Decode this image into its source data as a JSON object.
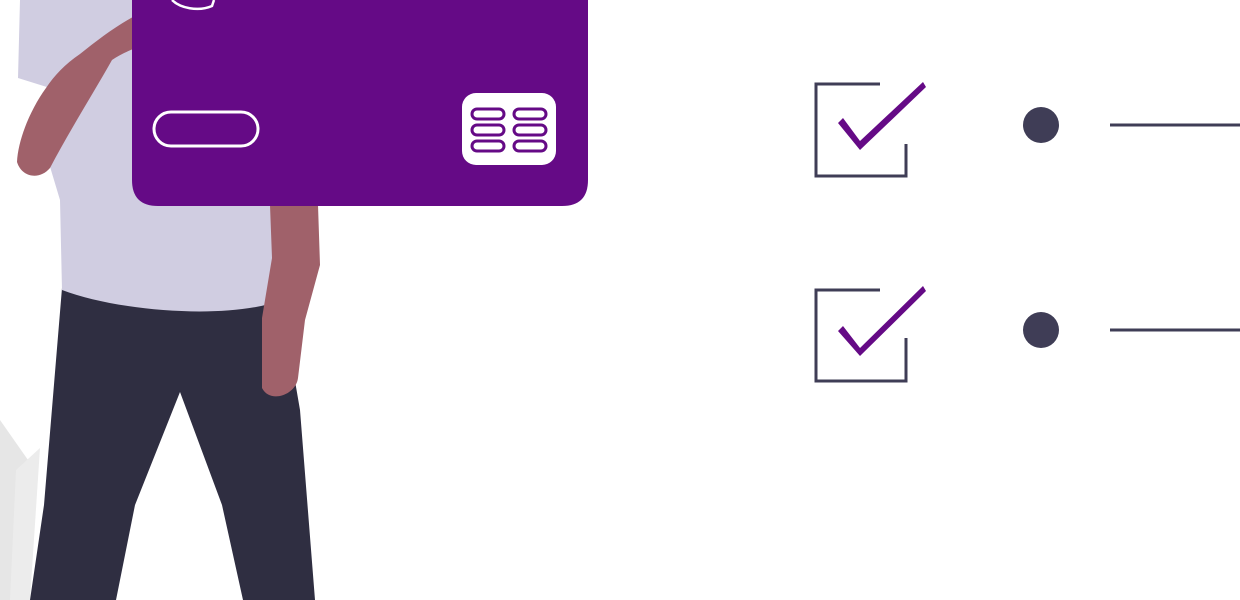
{
  "illustration": {
    "colors": {
      "card": "#650a86",
      "card_chip": "#ffffff",
      "skin": "#a0616a",
      "shirt": "#d0cde1",
      "pants": "#2f2e41",
      "accent_dark": "#3f3d56",
      "check": "#650a86",
      "plant": "#e6e6e6"
    },
    "icons": {
      "person": "person-holding-card-icon",
      "card": "credit-card-icon",
      "chip": "card-chip-icon",
      "checkbox": "checkbox-checked-icon",
      "bullet": "bullet-dot-icon"
    },
    "checklist": {
      "items": [
        {
          "checked": true
        },
        {
          "checked": true
        }
      ]
    }
  }
}
